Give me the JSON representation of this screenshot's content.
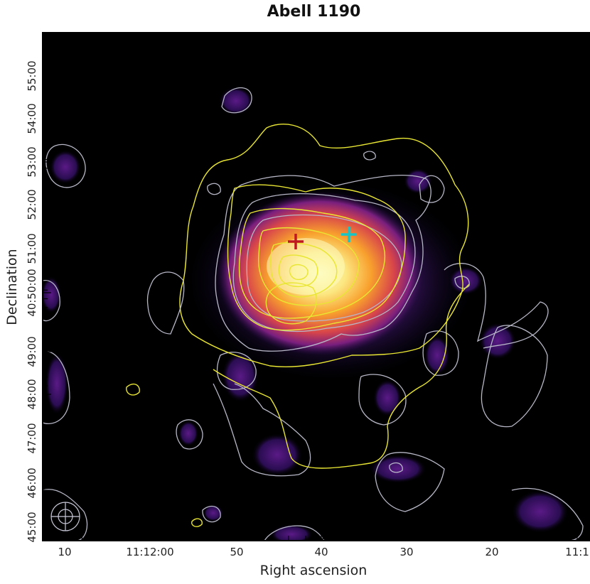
{
  "title": "Abell 1190",
  "x_axis": {
    "label": "Right ascension",
    "tick_labels": [
      "10",
      "11:12:00",
      "50",
      "40",
      "30",
      "20",
      "11:1"
    ]
  },
  "y_axis": {
    "label": "Declination",
    "tick_labels": [
      "45:00",
      "46:00",
      "47:00",
      "48:00",
      "49:00",
      "40:50:00",
      "51:00",
      "52:00",
      "53:00",
      "54:00",
      "55:00"
    ]
  },
  "colors": {
    "background": "#000000",
    "contour_white": "#b7b7c7",
    "contour_yellow": "#e9e633",
    "marker_red": "#c01820",
    "marker_cyan": "#16c6c6"
  },
  "markers": [
    {
      "name": "red-cross-marker",
      "color": "#c01820"
    },
    {
      "name": "cyan-cross-marker",
      "color": "#16c6c6"
    }
  ],
  "beam_symbol": "circle-cross"
}
